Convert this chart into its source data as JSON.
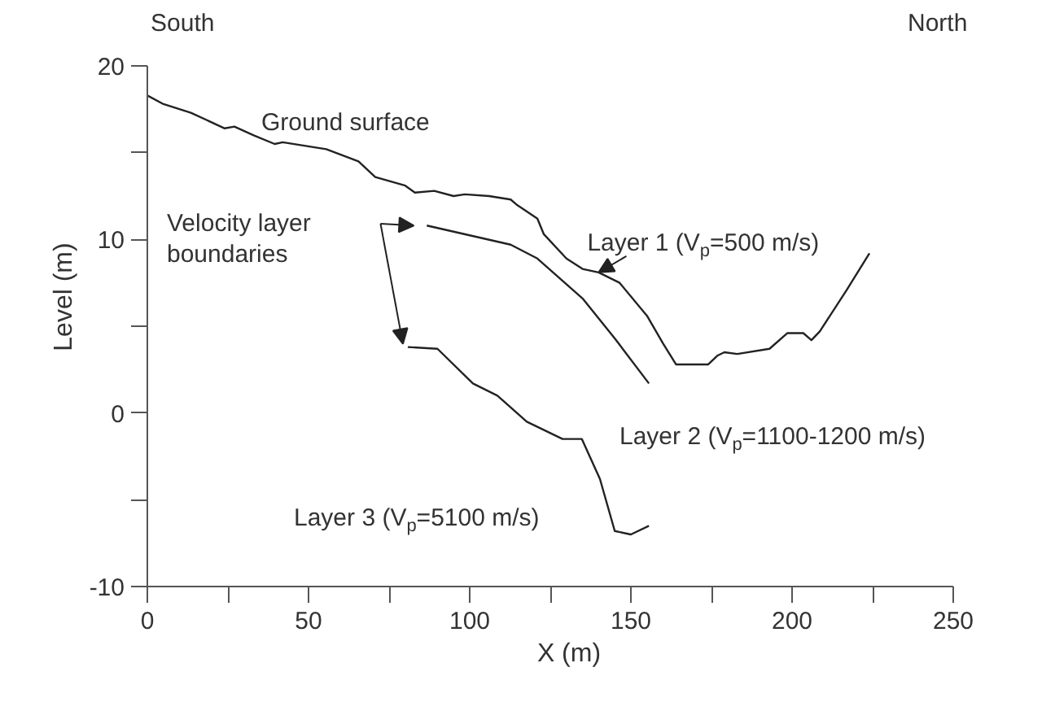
{
  "chart_data": {
    "type": "line",
    "xlabel": "X (m)",
    "ylabel": "Level (m)",
    "xlim": [
      0,
      250
    ],
    "ylim": [
      -10,
      20
    ],
    "xticks": [
      0,
      {
        "value": 25,
        "label": null
      },
      50,
      {
        "value": 75,
        "label": null
      },
      100,
      {
        "value": 125,
        "label": null
      },
      150,
      {
        "value": 175,
        "label": null
      },
      200,
      {
        "value": 225,
        "label": null
      },
      250
    ],
    "yticks": [
      -10,
      {
        "value": -5,
        "label": null
      },
      0,
      {
        "value": 5,
        "label": null
      },
      10,
      {
        "value": 15,
        "label": null
      },
      20
    ],
    "grid": false,
    "marker": "none",
    "line_style": "solid",
    "series": [
      {
        "color": "#222222",
        "x": [
          0,
          5,
          13.5,
          24,
          27,
          33,
          39.5,
          42,
          55.5,
          65.5,
          70.7,
          80,
          83,
          89,
          95,
          98.5,
          106,
          112.7,
          114.6,
          121,
          123,
          130,
          135,
          140,
          146.5,
          155,
          160,
          164,
          174,
          176.8,
          179,
          183,
          193,
          198.5,
          203.5,
          206,
          208.6,
          217,
          224
        ],
        "values": [
          18.3,
          17.8,
          17.3,
          16.4,
          16.5,
          16.0,
          15.5,
          15.6,
          15.2,
          14.5,
          13.6,
          13.1,
          12.7,
          12.8,
          12.5,
          12.6,
          12.5,
          12.3,
          12.0,
          11.2,
          10.3,
          8.9,
          8.3,
          8.1,
          7.5,
          5.6,
          4.0,
          2.8,
          2.8,
          3.3,
          3.5,
          3.4,
          3.7,
          4.6,
          4.6,
          4.2,
          4.7,
          7.1,
          9.2
        ]
      },
      {
        "color": "#222222",
        "x": [
          86.7,
          112.7,
          121,
          135,
          145,
          155.6
        ],
        "values": [
          10.8,
          9.7,
          8.9,
          6.6,
          4.3,
          1.7
        ]
      },
      {
        "color": "#222222",
        "x": [
          80.8,
          90,
          101,
          108.6,
          117.7,
          128.8,
          134.8,
          140.4,
          145,
          150,
          155.6
        ],
        "values": [
          3.8,
          3.7,
          1.7,
          1.0,
          -0.5,
          -1.5,
          -1.5,
          -3.8,
          -6.8,
          -7.0,
          -6.5
        ]
      }
    ],
    "annotations": [
      {
        "text": "South"
      },
      {
        "text": "North"
      },
      "Ground surface",
      "Velocity layer\nboundaries",
      {
        "text": "Layer 1 (V$_{p}$=500 m/s)",
        "x": 140,
        "y": 8.1
      },
      "Layer 2 (V$_{p}$=1100-1200 m/s)",
      "Layer 3 (V$_{p}$=5100 m/s)"
    ]
  }
}
